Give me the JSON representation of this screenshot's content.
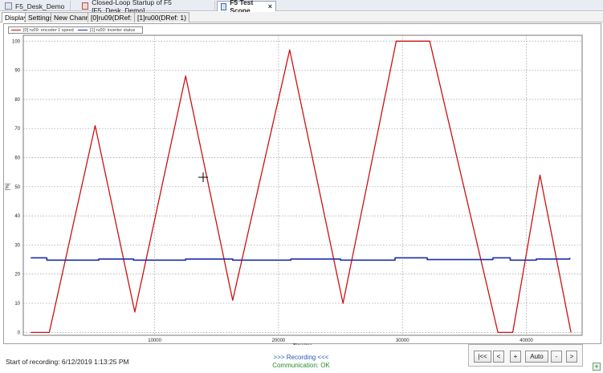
{
  "doc_tabs": [
    {
      "label": "F5_Desk_Demo",
      "icon": "folder-icon"
    },
    {
      "label": "Closed-Loop Startup of F5 [F5_Desk_Demo]",
      "icon": "document-icon"
    },
    {
      "label": "F5 Test Scope",
      "icon": "scope-icon"
    }
  ],
  "close_glyph": "×",
  "sub_tabs": [
    {
      "label": "Display"
    },
    {
      "label": "Settings"
    },
    {
      "label": "New Channel"
    },
    {
      "label": "[0]ru09(DRef: 1)"
    },
    {
      "label": "[1]ru00(DRef: 1)"
    }
  ],
  "legend": [
    {
      "label": "[0] ru09: encoder 1 speed",
      "color": "#cc1111"
    },
    {
      "label": "[1] ru00: inverter status",
      "color": "#1a2fb0"
    }
  ],
  "status": {
    "start": "Start of recording: 6/12/2019 1:13:25 PM",
    "recording": ">>> Recording <<<",
    "communication": "Communication: OK"
  },
  "nav_buttons": [
    "|<<",
    "<",
    "+",
    "Auto",
    "-",
    ">"
  ],
  "add_glyph": "+",
  "chart_data": {
    "type": "line",
    "xlabel": "Time/ms",
    "ylabel": "[%]",
    "xlim": [
      -600,
      44500
    ],
    "ylim": [
      -1,
      102
    ],
    "x_ticks": [
      10000,
      20000,
      30000,
      40000
    ],
    "y_ticks": [
      0,
      10,
      20,
      30,
      40,
      50,
      60,
      70,
      80,
      90,
      100
    ],
    "grid": true,
    "legend_position": "top-left",
    "series": [
      {
        "name": "[0] ru09: encoder 1 speed",
        "color": "#cc1111",
        "x": [
          0,
          1500,
          5200,
          8400,
          12500,
          16300,
          20900,
          25200,
          29500,
          32200,
          37700,
          38900,
          41100,
          43600
        ],
        "y": [
          0,
          0,
          71,
          7,
          88,
          11,
          97,
          10,
          100,
          100,
          0,
          0,
          54,
          0
        ]
      },
      {
        "name": "[1] ru00: inverter status",
        "color": "#1a2fb0",
        "x": [
          0,
          1300,
          1300,
          5500,
          5500,
          8300,
          8300,
          12500,
          12500,
          16300,
          16300,
          21000,
          21000,
          25000,
          25000,
          29400,
          29400,
          32000,
          32000,
          37300,
          37300,
          38700,
          38700,
          40800,
          40800,
          43500,
          43500
        ],
        "y": [
          25.6,
          25.6,
          24.8,
          24.8,
          25.2,
          25.2,
          24.8,
          24.8,
          25.2,
          25.2,
          24.8,
          24.8,
          25.2,
          25.2,
          24.8,
          24.8,
          25.6,
          25.6,
          25.0,
          25.0,
          25.6,
          25.6,
          24.8,
          24.8,
          25.2,
          25.2,
          25.6
        ]
      }
    ]
  }
}
